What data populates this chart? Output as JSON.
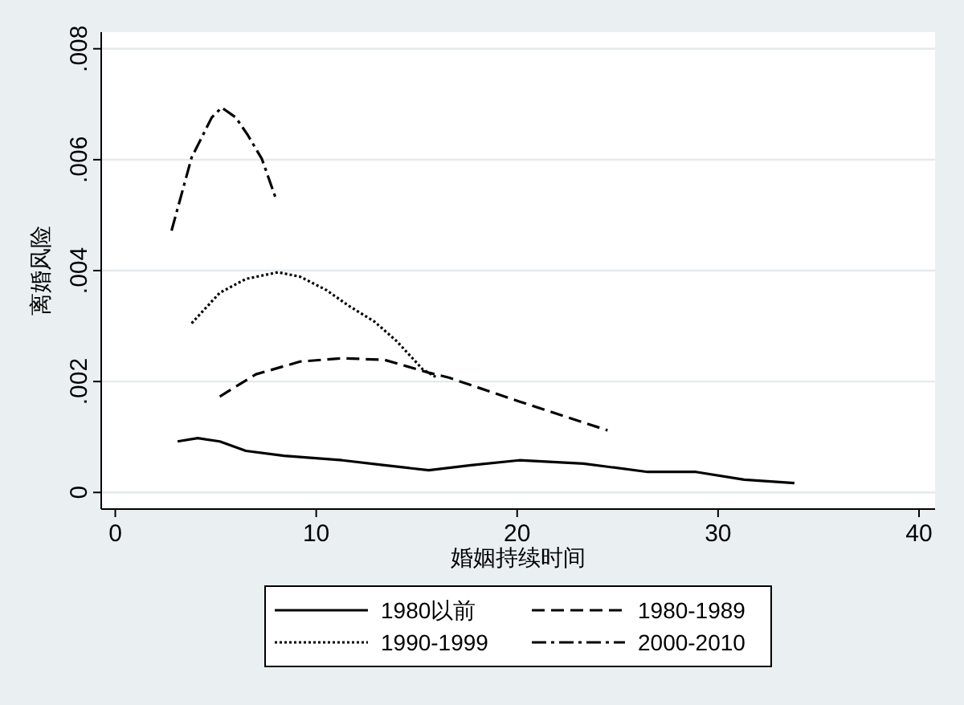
{
  "chart_data": {
    "type": "line",
    "xlabel": "婚姻持续时间",
    "ylabel": "离婚风险",
    "xlim": [
      -0.7,
      40.8
    ],
    "xticks": [
      0,
      10,
      20,
      30,
      40
    ],
    "ylim": [
      -0.0003,
      0.0083
    ],
    "yticks": [
      {
        "value": 0,
        "label": "0"
      },
      {
        "value": 0.002,
        "label": ".002"
      },
      {
        "value": 0.004,
        "label": ".004"
      },
      {
        "value": 0.006,
        "label": ".006"
      },
      {
        "value": 0.008,
        "label": ".008"
      }
    ],
    "grid": "y",
    "legend": "bottom",
    "series": [
      {
        "name": "1980以前",
        "color": "#000000",
        "line_style": "solid",
        "x": [
          3.1,
          4.1,
          5.2,
          6.5,
          8.4,
          11.3,
          13.4,
          15.6,
          17.7,
          20.1,
          23.3,
          26.5,
          28.9,
          31.3,
          33.8
        ],
        "values": [
          0.00092,
          0.00098,
          0.00092,
          0.00075,
          0.00066,
          0.00058,
          0.00049,
          0.0004,
          0.00049,
          0.00058,
          0.00052,
          0.00037,
          0.00037,
          0.00023,
          0.00017
        ]
      },
      {
        "name": "1980-1989",
        "color": "#000000",
        "line_style": "dashed",
        "x": [
          5.2,
          7.0,
          9.2,
          11.3,
          13.4,
          15.6,
          16.6,
          20.1,
          24.5
        ],
        "values": [
          0.00173,
          0.00213,
          0.00236,
          0.00242,
          0.00239,
          0.00216,
          0.00207,
          0.00164,
          0.00112
        ]
      },
      {
        "name": "1990-1999",
        "color": "#000000",
        "line_style": "dotted",
        "x": [
          3.8,
          5.2,
          6.5,
          8.1,
          9.2,
          10.5,
          11.6,
          12.9,
          14.0,
          15.3,
          16.0
        ],
        "values": [
          0.00305,
          0.0036,
          0.00385,
          0.00397,
          0.00389,
          0.00365,
          0.00337,
          0.00308,
          0.00273,
          0.00222,
          0.00207
        ]
      },
      {
        "name": "2000-2010",
        "color": "#000000",
        "line_style": "dashdot",
        "x": [
          2.8,
          3.8,
          4.8,
          5.3,
          6.0,
          6.6,
          7.3,
          8.0
        ],
        "values": [
          0.00472,
          0.00604,
          0.00676,
          0.00694,
          0.00676,
          0.00644,
          0.00601,
          0.00529
        ]
      }
    ]
  }
}
